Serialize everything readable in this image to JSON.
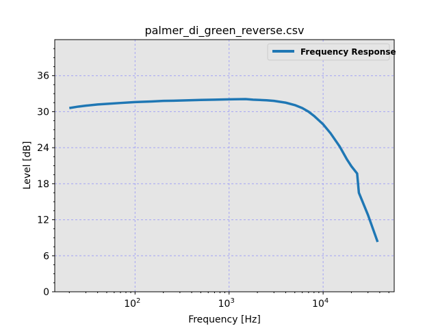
{
  "chart_data": {
    "type": "line",
    "title": "palmer_di_green_reverse.csv",
    "xlabel": "Frequency [Hz]",
    "ylabel": "Level [dB]",
    "xscale": "log",
    "xlim": [
      14,
      57000
    ],
    "ylim": [
      0,
      42
    ],
    "xticks": [
      {
        "value": 100,
        "base": "10",
        "exp": "2"
      },
      {
        "value": 1000,
        "base": "10",
        "exp": "3"
      },
      {
        "value": 10000,
        "base": "10",
        "exp": "4"
      }
    ],
    "yticks": [
      0,
      6,
      12,
      18,
      24,
      30,
      36
    ],
    "grid": true,
    "legend_position": "top-right",
    "colors": {
      "line": "#1f77b4",
      "axes_bg": "#e5e5e5",
      "grid": "#a3a3f5"
    },
    "series": [
      {
        "name": "Frequency Response",
        "x": [
          20,
          25,
          30,
          40,
          50,
          70,
          100,
          150,
          200,
          300,
          500,
          700,
          1000,
          1500,
          1800,
          2500,
          3000,
          4000,
          5000,
          6000,
          7000,
          8000,
          10000,
          12000,
          15000,
          18000,
          20000,
          23000,
          24000,
          30000,
          38000
        ],
        "y": [
          30.6,
          30.85,
          31.0,
          31.2,
          31.3,
          31.45,
          31.6,
          31.7,
          31.8,
          31.85,
          31.95,
          32.0,
          32.05,
          32.1,
          32.0,
          31.9,
          31.8,
          31.5,
          31.1,
          30.6,
          30.0,
          29.3,
          27.9,
          26.4,
          24.2,
          22.0,
          20.9,
          19.7,
          16.5,
          12.8,
          8.3
        ]
      }
    ]
  }
}
